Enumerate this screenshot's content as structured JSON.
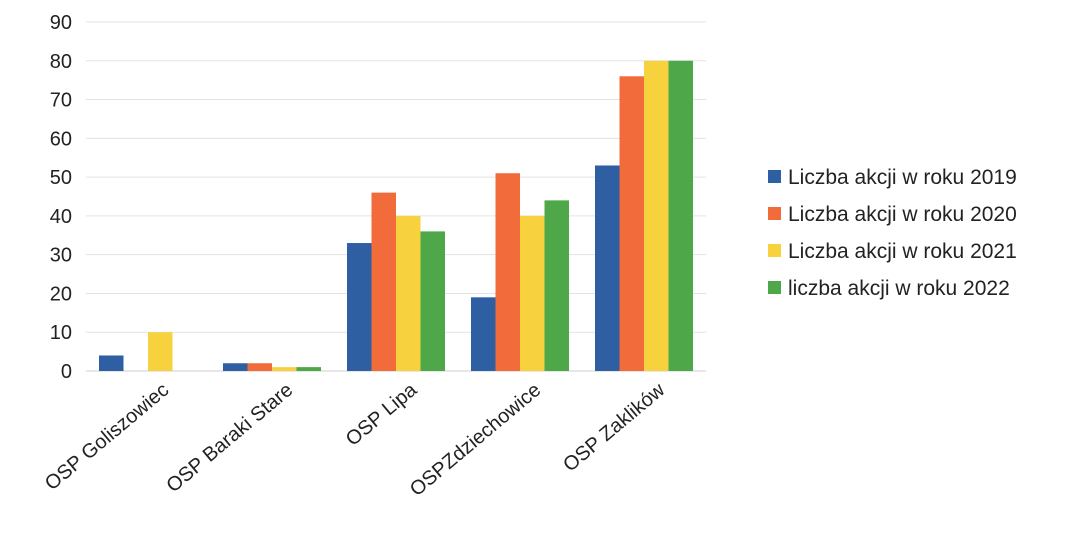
{
  "chart_data": {
    "type": "bar",
    "categories": [
      "OSP Goliszowiec",
      "OSP Baraki Stare",
      "OSP Lipa",
      "OSPZdziechowice",
      "OSP Zaklików"
    ],
    "series": [
      {
        "name": "Liczba akcji w roku 2019",
        "color": "#2e5fa3",
        "values": [
          4,
          2,
          33,
          19,
          53
        ]
      },
      {
        "name": "Liczba akcji w roku 2020",
        "color": "#f26b3a",
        "values": [
          0,
          2,
          46,
          51,
          76
        ]
      },
      {
        "name": "Liczba akcji w roku 2021",
        "color": "#f7d23e",
        "values": [
          10,
          1,
          40,
          40,
          80
        ]
      },
      {
        "name": "liczba akcji w roku 2022",
        "color": "#4ea84a",
        "values": [
          0,
          1,
          36,
          44,
          80
        ]
      }
    ],
    "yticks": [
      "0",
      "10",
      "20",
      "30",
      "40",
      "50",
      "60",
      "70",
      "80",
      "90"
    ],
    "ylim": [
      0,
      90
    ],
    "grid": true,
    "legend_position": "right"
  }
}
